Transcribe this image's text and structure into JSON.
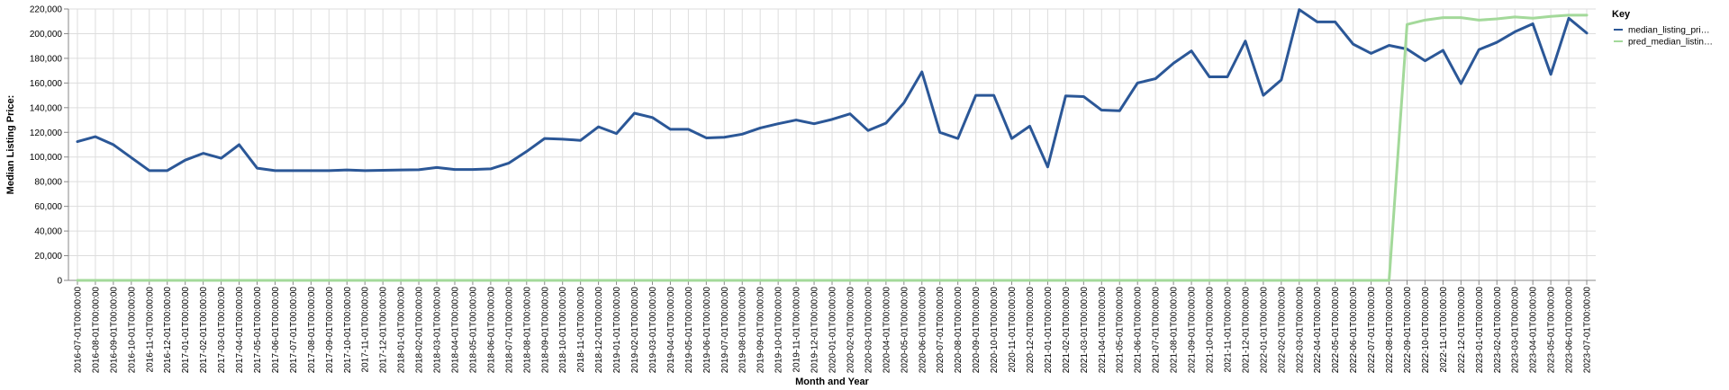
{
  "chart_data": {
    "type": "line",
    "xlabel": "Month and Year",
    "ylabel": "Median Listing Price:",
    "ylim": [
      0,
      220000
    ],
    "yticks": [
      0,
      20000,
      40000,
      60000,
      80000,
      100000,
      120000,
      140000,
      160000,
      180000,
      200000,
      220000
    ],
    "ytick_labels": [
      "0",
      "20,000",
      "40,000",
      "60,000",
      "80,000",
      "100,000",
      "120,000",
      "140,000",
      "160,000",
      "180,000",
      "200,000",
      "220,000"
    ],
    "grid": true,
    "legend": {
      "title": "Key",
      "placement": "top-right",
      "entries": [
        "median_listing_pri…",
        "pred_median_listin…"
      ]
    },
    "x": [
      "2016-07-01T00:00:00",
      "2016-08-01T00:00:00",
      "2016-09-01T00:00:00",
      "2016-10-01T00:00:00",
      "2016-11-01T00:00:00",
      "2016-12-01T00:00:00",
      "2017-01-01T00:00:00",
      "2017-02-01T00:00:00",
      "2017-03-01T00:00:00",
      "2017-04-01T00:00:00",
      "2017-05-01T00:00:00",
      "2017-06-01T00:00:00",
      "2017-07-01T00:00:00",
      "2017-08-01T00:00:00",
      "2017-09-01T00:00:00",
      "2017-10-01T00:00:00",
      "2017-11-01T00:00:00",
      "2017-12-01T00:00:00",
      "2018-01-01T00:00:00",
      "2018-02-01T00:00:00",
      "2018-03-01T00:00:00",
      "2018-04-01T00:00:00",
      "2018-05-01T00:00:00",
      "2018-06-01T00:00:00",
      "2018-07-01T00:00:00",
      "2018-08-01T00:00:00",
      "2018-09-01T00:00:00",
      "2018-10-01T00:00:00",
      "2018-11-01T00:00:00",
      "2018-12-01T00:00:00",
      "2019-01-01T00:00:00",
      "2019-02-01T00:00:00",
      "2019-03-01T00:00:00",
      "2019-04-01T00:00:00",
      "2019-05-01T00:00:00",
      "2019-06-01T00:00:00",
      "2019-07-01T00:00:00",
      "2019-08-01T00:00:00",
      "2019-09-01T00:00:00",
      "2019-10-01T00:00:00",
      "2019-11-01T00:00:00",
      "2019-12-01T00:00:00",
      "2020-01-01T00:00:00",
      "2020-02-01T00:00:00",
      "2020-03-01T00:00:00",
      "2020-04-01T00:00:00",
      "2020-05-01T00:00:00",
      "2020-06-01T00:00:00",
      "2020-07-01T00:00:00",
      "2020-08-01T00:00:00",
      "2020-09-01T00:00:00",
      "2020-10-01T00:00:00",
      "2020-11-01T00:00:00",
      "2020-12-01T00:00:00",
      "2021-01-01T00:00:00",
      "2021-02-01T00:00:00",
      "2021-03-01T00:00:00",
      "2021-04-01T00:00:00",
      "2021-05-01T00:00:00",
      "2021-06-01T00:00:00",
      "2021-07-01T00:00:00",
      "2021-08-01T00:00:00",
      "2021-09-01T00:00:00",
      "2021-10-01T00:00:00",
      "2021-11-01T00:00:00",
      "2021-12-01T00:00:00",
      "2022-01-01T00:00:00",
      "2022-02-01T00:00:00",
      "2022-03-01T00:00:00",
      "2022-04-01T00:00:00",
      "2022-05-01T00:00:00",
      "2022-06-01T00:00:00",
      "2022-07-01T00:00:00",
      "2022-08-01T00:00:00",
      "2022-09-01T00:00:00",
      "2022-10-01T00:00:00",
      "2022-11-01T00:00:00",
      "2022-12-01T00:00:00",
      "2023-01-01T00:00:00",
      "2023-02-01T00:00:00",
      "2023-03-01T00:00:00",
      "2023-04-01T00:00:00",
      "2023-05-01T00:00:00",
      "2023-06-01T00:00:00",
      "2023-07-01T00:00:00"
    ],
    "series": [
      {
        "name": "median_listing_pri…",
        "color": "#2b5797",
        "values": [
          112500,
          116500,
          110000,
          99500,
          89000,
          89000,
          97500,
          103000,
          99000,
          110000,
          91000,
          89000,
          89000,
          89000,
          89000,
          89500,
          89000,
          89200,
          89500,
          89700,
          91500,
          89900,
          89900,
          90400,
          95000,
          104500,
          115000,
          114500,
          113500,
          124500,
          119000,
          135500,
          132000,
          122500,
          122500,
          115500,
          116000,
          118500,
          123500,
          127000,
          130000,
          127000,
          130500,
          135000,
          121500,
          127500,
          144000,
          169000,
          120000,
          115000,
          150000,
          150000,
          115000,
          125000,
          92000,
          149500,
          149000,
          138000,
          137500,
          160000,
          163500,
          176000,
          186000,
          165000,
          165000,
          194000,
          150000,
          162500,
          219500,
          209500,
          209500,
          191500,
          184000,
          190500,
          187500,
          178000,
          186500,
          159500,
          187000,
          193000,
          201500,
          208000,
          167000,
          212500,
          200500
        ]
      },
      {
        "name": "pred_median_listin…",
        "color": "#a3d99a",
        "values": [
          0,
          0,
          0,
          0,
          0,
          0,
          0,
          0,
          0,
          0,
          0,
          0,
          0,
          0,
          0,
          0,
          0,
          0,
          0,
          0,
          0,
          0,
          0,
          0,
          0,
          0,
          0,
          0,
          0,
          0,
          0,
          0,
          0,
          0,
          0,
          0,
          0,
          0,
          0,
          0,
          0,
          0,
          0,
          0,
          0,
          0,
          0,
          0,
          0,
          0,
          0,
          0,
          0,
          0,
          0,
          0,
          0,
          0,
          0,
          0,
          0,
          0,
          0,
          0,
          0,
          0,
          0,
          0,
          0,
          0,
          0,
          0,
          0,
          0,
          207500,
          211000,
          213000,
          213000,
          211000,
          212000,
          213500,
          212500,
          214000,
          215000,
          215000
        ]
      }
    ]
  }
}
